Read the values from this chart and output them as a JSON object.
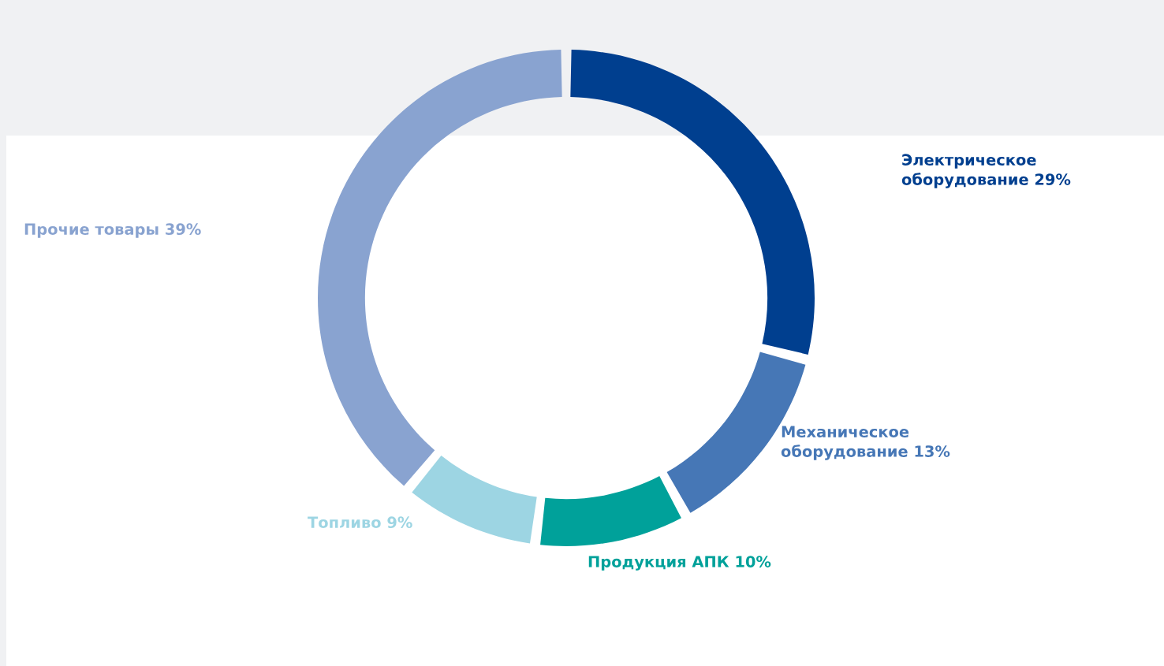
{
  "chart_data": {
    "type": "donut",
    "categories": [
      "Электрическое оборудование",
      "Механическое оборудование",
      "Продукция АПК",
      "Топливо",
      "Прочие товары"
    ],
    "values": [
      29,
      13,
      10,
      9,
      39
    ],
    "value_labels": [
      "29%",
      "13%",
      "10%",
      "9%",
      "39%"
    ],
    "colors": [
      "#003f8f",
      "#4677b6",
      "#00a19a",
      "#9dd5e3",
      "#89a3d0"
    ],
    "legend": false
  }
}
